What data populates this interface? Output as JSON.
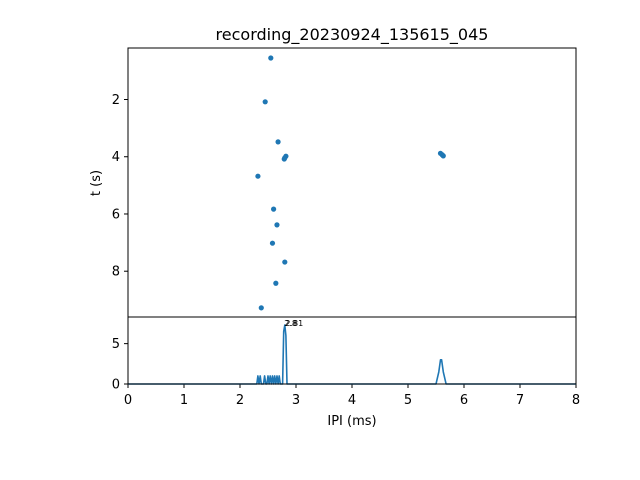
{
  "chart_data": [
    {
      "type": "scatter",
      "title": "recording_20230924_135615_045",
      "xlabel": "",
      "ylabel": "t (s)",
      "xlim": [
        0,
        8
      ],
      "ylim": [
        9.6,
        0.2
      ],
      "y_inverted": true,
      "yticks": [
        2,
        4,
        6,
        8
      ],
      "color": "#1f77b4",
      "points": [
        {
          "x": 2.55,
          "y": 0.55
        },
        {
          "x": 2.45,
          "y": 2.08
        },
        {
          "x": 2.68,
          "y": 3.48
        },
        {
          "x": 2.82,
          "y": 3.98
        },
        {
          "x": 2.8,
          "y": 4.04
        },
        {
          "x": 2.79,
          "y": 4.08
        },
        {
          "x": 5.58,
          "y": 3.88
        },
        {
          "x": 5.61,
          "y": 3.93
        },
        {
          "x": 5.63,
          "y": 3.97
        },
        {
          "x": 2.32,
          "y": 4.68
        },
        {
          "x": 2.6,
          "y": 5.83
        },
        {
          "x": 2.66,
          "y": 6.38
        },
        {
          "x": 2.58,
          "y": 7.02
        },
        {
          "x": 2.8,
          "y": 7.68
        },
        {
          "x": 2.64,
          "y": 8.42
        },
        {
          "x": 2.38,
          "y": 9.28
        }
      ]
    },
    {
      "type": "line",
      "xlabel": "IPI (ms)",
      "ylabel": "",
      "xlim": [
        0,
        8
      ],
      "ylim": [
        0,
        8.3
      ],
      "xticks": [
        0,
        1,
        2,
        3,
        4,
        5,
        6,
        7,
        8
      ],
      "yticks": [
        0,
        5
      ],
      "color": "#1f77b4",
      "x": [
        0,
        2.3,
        2.32,
        2.34,
        2.36,
        2.38,
        2.4,
        2.42,
        2.44,
        2.46,
        2.48,
        2.5,
        2.52,
        2.54,
        2.56,
        2.58,
        2.6,
        2.62,
        2.64,
        2.66,
        2.68,
        2.7,
        2.72,
        2.74,
        2.76,
        2.78,
        2.8,
        2.82,
        2.84,
        5.5,
        5.55,
        5.58,
        5.6,
        5.63,
        5.68,
        8.0
      ],
      "y": [
        0,
        0,
        1.0,
        0,
        1.0,
        0,
        0,
        0,
        1.0,
        0,
        0,
        1.0,
        0,
        1.0,
        0,
        1.0,
        0,
        1.0,
        0,
        1.0,
        0,
        1.0,
        0,
        0,
        0,
        6.5,
        7.3,
        6.0,
        0,
        0,
        1.5,
        3.0,
        3.0,
        1.5,
        0,
        0
      ],
      "annotations": [
        {
          "text": "2.81",
          "x": 2.81,
          "y": 7.3
        },
        {
          "text": "2.8",
          "x": 2.79,
          "y": 7.3
        }
      ]
    }
  ]
}
